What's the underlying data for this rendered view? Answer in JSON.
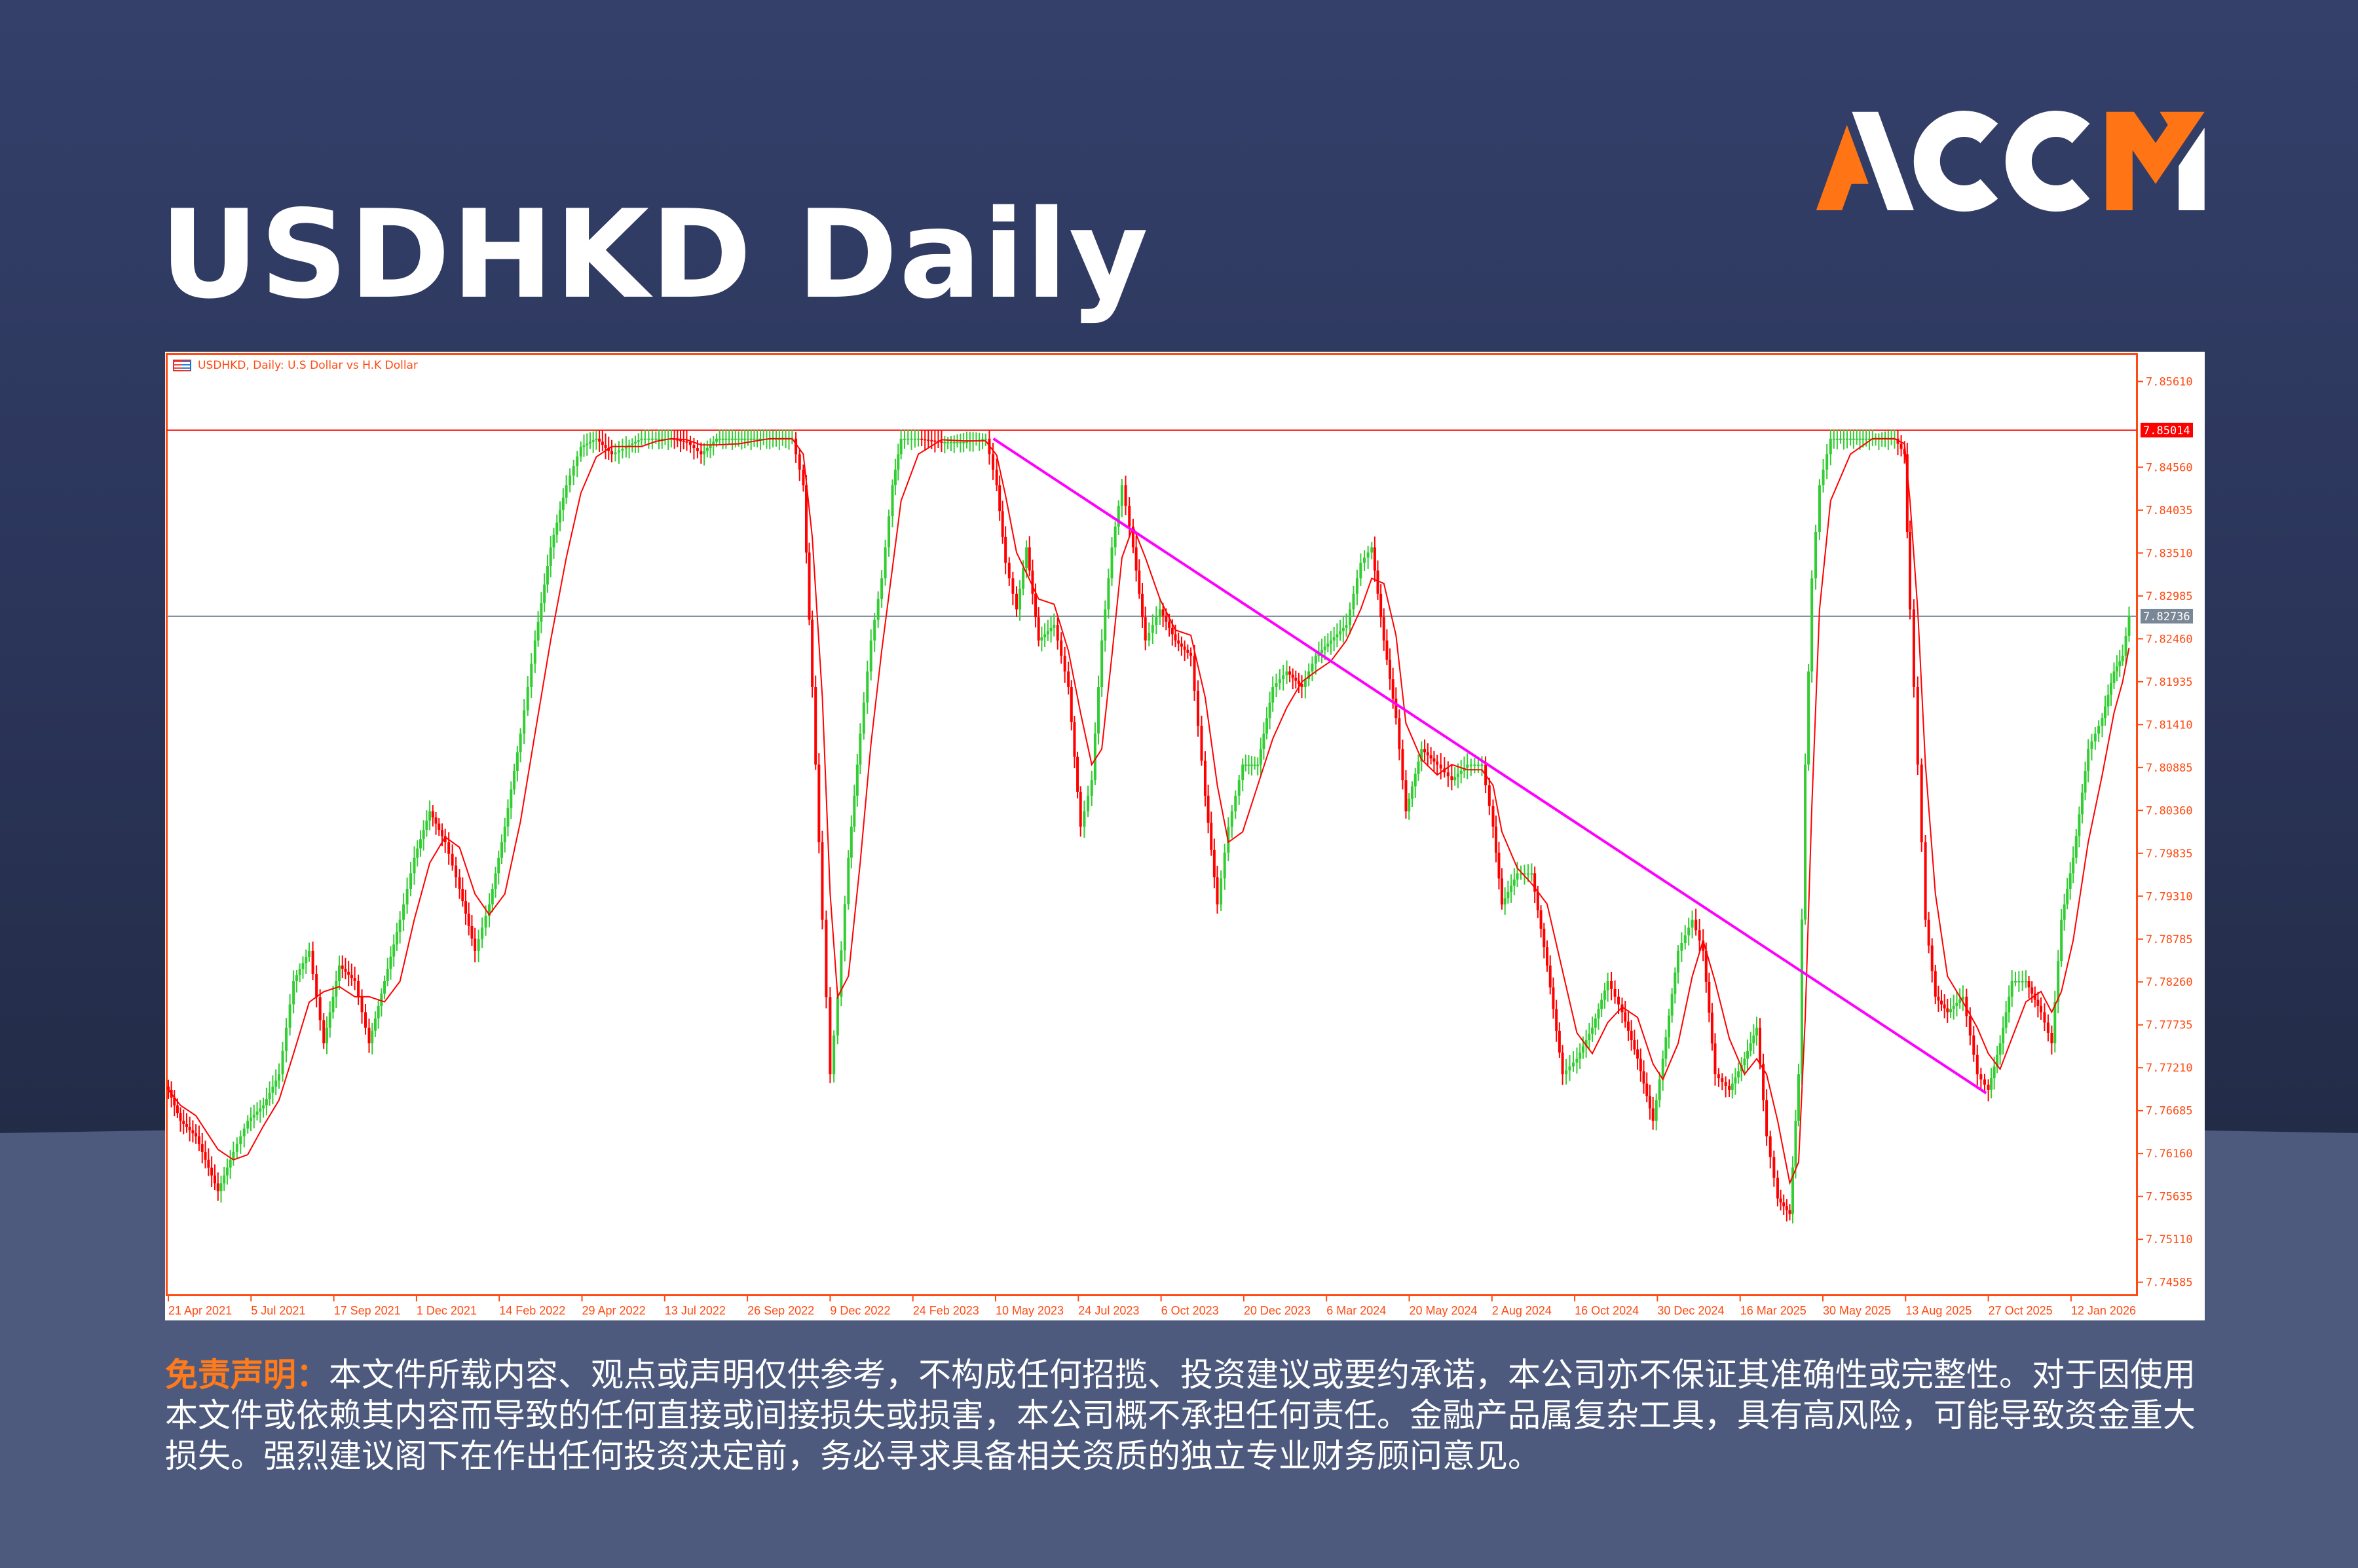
{
  "page": {
    "title": "USDHKD Daily"
  },
  "logo": {
    "text": "ACCM",
    "colors": {
      "orange": "#ff7414",
      "white": "#ffffff"
    }
  },
  "disclaimer": {
    "label": "免责声明：",
    "text": "本文件所载内容、观点或声明仅供参考，不构成任何招揽、投资建议或要约承诺，本公司亦不保证其准确性或完整性。对于因使用本文件或依赖其内容而导致的任何直接或间接损失或损害，本公司概不承担任何责任。金融产品属复杂工具，具有高风险，可能导致资金重大损失。强烈建议阁下在作出任何投资决定前，务必寻求具备相关资质的独立专业财务顾问意见。"
  },
  "chart_data": {
    "type": "candlestick",
    "title": "USDHKD, Daily:  U.S Dollar vs H.K Dollar",
    "xlabel": "",
    "ylabel": "",
    "ylim": [
      7.7443,
      7.8595
    ],
    "grid": false,
    "colors": {
      "up": "#32cd32",
      "down": "#ff0000",
      "axis": "#ff4a12",
      "trendline": "#ff00ff",
      "resistance": "#ff0000",
      "current": "#7a8796"
    },
    "x_ticks": [
      "21 Apr 2021",
      "5 Jul 2021",
      "17 Sep 2021",
      "1 Dec 2021",
      "14 Feb 2022",
      "29 Apr 2022",
      "13 Jul 2022",
      "26 Sep 2022",
      "9 Dec 2022",
      "24 Feb 2023",
      "10 May 2023",
      "24 Jul 2023",
      "6 Oct 2023",
      "20 Dec 2023",
      "6 Mar 2024",
      "20 May 2024",
      "2 Aug 2024",
      "16 Oct 2024",
      "30 Dec 2024",
      "16 Mar 2025",
      "30 May 2025",
      "13 Aug 2025",
      "27 Oct 2025",
      "12 Jan 2026"
    ],
    "y_ticks": [
      "7.85610",
      "7.84560",
      "7.84035",
      "7.83510",
      "7.82985",
      "7.82460",
      "7.81935",
      "7.81410",
      "7.80885",
      "7.80360",
      "7.79835",
      "7.79310",
      "7.78785",
      "7.78260",
      "7.77735",
      "7.77210",
      "7.76685",
      "7.76160",
      "7.75635",
      "7.75110",
      "7.74585"
    ],
    "horizontal_lines": [
      {
        "label": "7.85014",
        "value": 7.85014,
        "color": "#ff0000"
      },
      {
        "label": "7.82736",
        "value": 7.82736,
        "color": "#7a8796"
      }
    ],
    "trendline": {
      "start": {
        "date": "2023-05-08",
        "value": 7.8491
      },
      "end": {
        "date": "2025-10-25",
        "value": 7.769
      }
    },
    "closes": [
      [
        "2021-04-21",
        7.7694
      ],
      [
        "2021-05-02",
        7.7656
      ],
      [
        "2021-05-16",
        7.7637
      ],
      [
        "2021-06-05",
        7.757
      ],
      [
        "2021-06-19",
        7.7618
      ],
      [
        "2021-07-02",
        7.7656
      ],
      [
        "2021-07-16",
        7.7675
      ],
      [
        "2021-07-30",
        7.7713
      ],
      [
        "2021-08-12",
        7.7827
      ],
      [
        "2021-08-26",
        7.7864
      ],
      [
        "2021-09-08",
        7.7751
      ],
      [
        "2021-09-22",
        7.7846
      ],
      [
        "2021-10-06",
        7.7827
      ],
      [
        "2021-10-19",
        7.7751
      ],
      [
        "2021-11-02",
        7.7827
      ],
      [
        "2021-11-16",
        7.7902
      ],
      [
        "2021-11-29",
        7.7978
      ],
      [
        "2021-12-13",
        7.8035
      ],
      [
        "2021-12-27",
        7.7997
      ],
      [
        "2022-01-09",
        7.794
      ],
      [
        "2022-01-23",
        7.7864
      ],
      [
        "2022-02-05",
        7.7921
      ],
      [
        "2022-02-19",
        7.8016
      ],
      [
        "2022-03-05",
        7.813
      ],
      [
        "2022-03-18",
        7.8244
      ],
      [
        "2022-04-01",
        7.8358
      ],
      [
        "2022-04-15",
        7.8434
      ],
      [
        "2022-04-28",
        7.8481
      ],
      [
        "2022-05-12",
        7.8491
      ],
      [
        "2022-05-26",
        7.8472
      ],
      [
        "2022-06-08",
        7.8481
      ],
      [
        "2022-06-22",
        7.8491
      ],
      [
        "2022-07-05",
        7.8491
      ],
      [
        "2022-07-19",
        7.8491
      ],
      [
        "2022-08-02",
        7.8487
      ],
      [
        "2022-08-15",
        7.8472
      ],
      [
        "2022-08-29",
        7.8491
      ],
      [
        "2022-09-18",
        7.8491
      ],
      [
        "2022-10-16",
        7.8491
      ],
      [
        "2022-11-05",
        7.8491
      ],
      [
        "2022-11-15",
        7.8434
      ],
      [
        "2022-11-23",
        7.8187
      ],
      [
        "2022-12-02",
        7.7902
      ],
      [
        "2022-12-09",
        7.7713
      ],
      [
        "2022-12-16",
        7.7808
      ],
      [
        "2022-12-26",
        7.7978
      ],
      [
        "2023-01-06",
        7.813
      ],
      [
        "2023-01-16",
        7.8244
      ],
      [
        "2023-01-26",
        7.832
      ],
      [
        "2023-02-05",
        7.8434
      ],
      [
        "2023-02-13",
        7.8491
      ],
      [
        "2023-03-01",
        7.8491
      ],
      [
        "2023-03-22",
        7.8487
      ],
      [
        "2023-04-11",
        7.8487
      ],
      [
        "2023-05-01",
        7.8491
      ],
      [
        "2023-05-11",
        7.8434
      ],
      [
        "2023-05-19",
        7.8339
      ],
      [
        "2023-05-29",
        7.8282
      ],
      [
        "2023-06-07",
        7.8358
      ],
      [
        "2023-06-18",
        7.8244
      ],
      [
        "2023-07-02",
        7.8263
      ],
      [
        "2023-07-15",
        7.8187
      ],
      [
        "2023-07-26",
        7.8016
      ],
      [
        "2023-08-05",
        7.8073
      ],
      [
        "2023-08-14",
        7.8244
      ],
      [
        "2023-08-23",
        7.8358
      ],
      [
        "2023-09-01",
        7.8434
      ],
      [
        "2023-09-11",
        7.8358
      ],
      [
        "2023-09-22",
        7.8244
      ],
      [
        "2023-10-05",
        7.8282
      ],
      [
        "2023-10-19",
        7.8244
      ],
      [
        "2023-11-02",
        7.8225
      ],
      [
        "2023-11-15",
        7.8054
      ],
      [
        "2023-11-26",
        7.7921
      ],
      [
        "2023-12-06",
        7.8016
      ],
      [
        "2023-12-19",
        7.8092
      ],
      [
        "2024-01-02",
        7.8092
      ],
      [
        "2024-01-16",
        7.8187
      ],
      [
        "2024-01-29",
        7.8206
      ],
      [
        "2024-02-12",
        7.8187
      ],
      [
        "2024-02-25",
        7.8225
      ],
      [
        "2024-03-10",
        7.8244
      ],
      [
        "2024-03-24",
        7.8263
      ],
      [
        "2024-04-06",
        7.8339
      ],
      [
        "2024-04-16",
        7.8358
      ],
      [
        "2024-04-27",
        7.8244
      ],
      [
        "2024-05-08",
        7.8149
      ],
      [
        "2024-05-17",
        7.8035
      ],
      [
        "2024-05-31",
        7.8111
      ],
      [
        "2024-06-14",
        7.8092
      ],
      [
        "2024-06-27",
        7.8073
      ],
      [
        "2024-07-11",
        7.8092
      ],
      [
        "2024-07-24",
        7.8092
      ],
      [
        "2024-08-03",
        7.8016
      ],
      [
        "2024-08-11",
        7.7921
      ],
      [
        "2024-08-25",
        7.7959
      ],
      [
        "2024-09-07",
        7.7959
      ],
      [
        "2024-09-21",
        7.7846
      ],
      [
        "2024-10-05",
        7.7713
      ],
      [
        "2024-10-18",
        7.7732
      ],
      [
        "2024-11-01",
        7.777
      ],
      [
        "2024-11-15",
        7.7827
      ],
      [
        "2024-11-28",
        7.7789
      ],
      [
        "2024-12-12",
        7.7732
      ],
      [
        "2024-12-26",
        7.7656
      ],
      [
        "2025-01-04",
        7.7732
      ],
      [
        "2025-01-18",
        7.7864
      ],
      [
        "2025-01-31",
        7.7902
      ],
      [
        "2025-02-10",
        7.7864
      ],
      [
        "2025-02-21",
        7.7713
      ],
      [
        "2025-03-06",
        7.7694
      ],
      [
        "2025-03-20",
        7.7732
      ],
      [
        "2025-03-31",
        7.777
      ],
      [
        "2025-04-09",
        7.7637
      ],
      [
        "2025-04-19",
        7.7561
      ],
      [
        "2025-04-30",
        7.7542
      ],
      [
        "2025-05-08",
        7.7713
      ],
      [
        "2025-05-14",
        7.8092
      ],
      [
        "2025-05-20",
        7.832
      ],
      [
        "2025-05-27",
        7.8434
      ],
      [
        "2025-06-06",
        7.8491
      ],
      [
        "2025-06-24",
        7.8491
      ],
      [
        "2025-07-14",
        7.8491
      ],
      [
        "2025-08-03",
        7.8491
      ],
      [
        "2025-08-12",
        7.8472
      ],
      [
        "2025-08-17",
        7.8282
      ],
      [
        "2025-08-24",
        7.8092
      ],
      [
        "2025-08-31",
        7.7902
      ],
      [
        "2025-09-09",
        7.7808
      ],
      [
        "2025-09-20",
        7.7789
      ],
      [
        "2025-10-04",
        7.7808
      ],
      [
        "2025-10-17",
        7.7713
      ],
      [
        "2025-10-27",
        7.7694
      ],
      [
        "2025-11-07",
        7.7751
      ],
      [
        "2025-11-18",
        7.7827
      ],
      [
        "2025-12-01",
        7.7827
      ],
      [
        "2025-12-15",
        7.7789
      ],
      [
        "2025-12-25",
        7.7751
      ],
      [
        "2026-01-03",
        7.7902
      ],
      [
        "2026-01-14",
        7.7978
      ],
      [
        "2026-01-28",
        7.8111
      ],
      [
        "2026-02-10",
        7.8149
      ],
      [
        "2026-02-21",
        7.8206
      ],
      [
        "2026-03-01",
        7.8225
      ],
      [
        "2026-03-07",
        7.8274
      ]
    ]
  }
}
